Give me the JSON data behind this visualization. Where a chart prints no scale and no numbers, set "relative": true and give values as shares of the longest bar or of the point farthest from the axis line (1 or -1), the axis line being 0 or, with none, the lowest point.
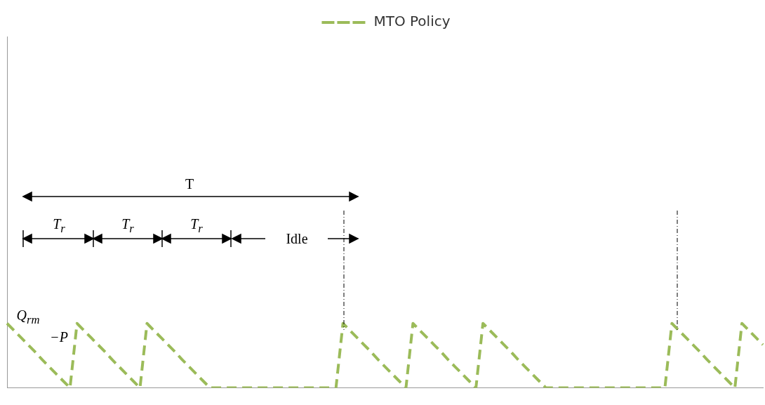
{
  "chart_data": {
    "type": "line",
    "relative": true,
    "legend": "top",
    "line_style": "dashed",
    "marker": "none",
    "grid": false,
    "categories": [
      null,
      null,
      null,
      null,
      null,
      null,
      null,
      null,
      null,
      null,
      null,
      null,
      null,
      null,
      null,
      null,
      null,
      null,
      null,
      null,
      null,
      null,
      null,
      null,
      null,
      null,
      null,
      null,
      null,
      null,
      null,
      null,
      null,
      null,
      null,
      null,
      null,
      null,
      null,
      null,
      null,
      null,
      null,
      null,
      null,
      null,
      null,
      null,
      null,
      null,
      null,
      null,
      null,
      null,
      null,
      null,
      null,
      null,
      null,
      null,
      null,
      null,
      null,
      null,
      null,
      null,
      null,
      null,
      null,
      null,
      null,
      null,
      null,
      null,
      null,
      null,
      null,
      null,
      null,
      null,
      null,
      null,
      null,
      null,
      null,
      null,
      null,
      null,
      null,
      null,
      null,
      null,
      null,
      null,
      null,
      null,
      null,
      null,
      null,
      null,
      null,
      null,
      null,
      null,
      null,
      null,
      null,
      null,
      null
    ],
    "series": [
      {
        "name": "MTO Policy",
        "color": "#9bbb59",
        "values": [
          1,
          0.89,
          0.78,
          0.67,
          0.56,
          0.44,
          0.33,
          0.22,
          0.11,
          0,
          1,
          0.89,
          0.78,
          0.67,
          0.56,
          0.44,
          0.33,
          0.22,
          0.11,
          0,
          1,
          0.89,
          0.78,
          0.67,
          0.56,
          0.44,
          0.33,
          0.22,
          0.11,
          0,
          0,
          0,
          0,
          0,
          0,
          0,
          0,
          0,
          0,
          0,
          0,
          0,
          0,
          0,
          0,
          0,
          0,
          0,
          1,
          0.89,
          0.78,
          0.67,
          0.56,
          0.44,
          0.33,
          0.22,
          0.11,
          0,
          1,
          0.89,
          0.78,
          0.67,
          0.56,
          0.44,
          0.33,
          0.22,
          0.11,
          0,
          1,
          0.89,
          0.78,
          0.67,
          0.56,
          0.44,
          0.33,
          0.22,
          0.11,
          0,
          0,
          0,
          0,
          0,
          0,
          0,
          0,
          0,
          0,
          0,
          0,
          0,
          0,
          0,
          0,
          0,
          0,
          1,
          0.89,
          0.78,
          0.67,
          0.56,
          0.44,
          0.33,
          0.22,
          0.11,
          0,
          1,
          0.89,
          0.78,
          0.67
        ]
      }
    ],
    "annotations": [
      "T",
      "T$_{r}$",
      "T$_{r}$",
      "T$_{r}$",
      "Idle",
      "Q$_{rm}$",
      "−P"
    ]
  }
}
